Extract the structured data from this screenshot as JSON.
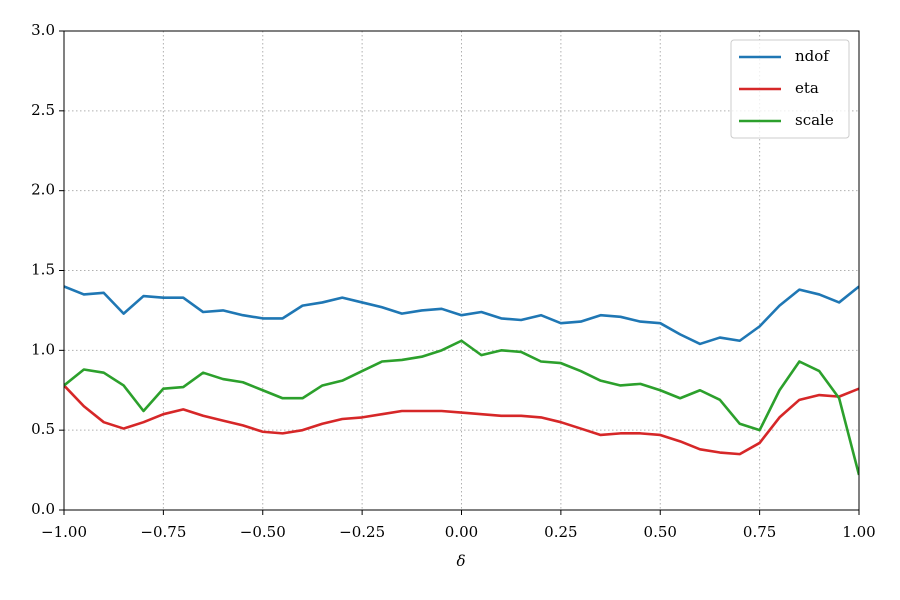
{
  "chart_data": {
    "type": "line",
    "x_label": "δ",
    "x": [
      -1.0,
      -0.95,
      -0.9,
      -0.85,
      -0.8,
      -0.75,
      -0.7,
      -0.65,
      -0.6,
      -0.55,
      -0.5,
      -0.45,
      -0.4,
      -0.35,
      -0.3,
      -0.25,
      -0.2,
      -0.15,
      -0.1,
      -0.05,
      0.0,
      0.05,
      0.1,
      0.15,
      0.2,
      0.25,
      0.3,
      0.35,
      0.4,
      0.45,
      0.5,
      0.55,
      0.6,
      0.65,
      0.7,
      0.75,
      0.8,
      0.85,
      0.9,
      0.95,
      1.0
    ],
    "series": [
      {
        "name": "ndof",
        "color": "#1f77b4",
        "values": [
          1.4,
          1.35,
          1.36,
          1.23,
          1.34,
          1.33,
          1.33,
          1.24,
          1.25,
          1.22,
          1.2,
          1.2,
          1.28,
          1.3,
          1.33,
          1.3,
          1.27,
          1.23,
          1.25,
          1.26,
          1.22,
          1.24,
          1.2,
          1.19,
          1.22,
          1.17,
          1.18,
          1.22,
          1.21,
          1.18,
          1.17,
          1.1,
          1.04,
          1.08,
          1.06,
          1.15,
          1.28,
          1.38,
          1.35,
          1.3,
          1.4
        ]
      },
      {
        "name": "eta",
        "color": "#d62728",
        "values": [
          0.78,
          0.65,
          0.55,
          0.51,
          0.55,
          0.6,
          0.63,
          0.59,
          0.56,
          0.53,
          0.49,
          0.48,
          0.5,
          0.54,
          0.57,
          0.58,
          0.6,
          0.62,
          0.62,
          0.62,
          0.61,
          0.6,
          0.59,
          0.59,
          0.58,
          0.55,
          0.51,
          0.47,
          0.48,
          0.48,
          0.47,
          0.43,
          0.38,
          0.36,
          0.35,
          0.42,
          0.58,
          0.69,
          0.72,
          0.71,
          0.76
        ]
      },
      {
        "name": "scale",
        "color": "#2ca02c",
        "values": [
          0.78,
          0.88,
          0.86,
          0.78,
          0.62,
          0.76,
          0.77,
          0.86,
          0.82,
          0.8,
          0.75,
          0.7,
          0.7,
          0.78,
          0.81,
          0.87,
          0.93,
          0.94,
          0.96,
          1.0,
          1.06,
          0.97,
          1.0,
          0.99,
          0.93,
          0.92,
          0.87,
          0.81,
          0.78,
          0.79,
          0.75,
          0.7,
          0.75,
          0.69,
          0.54,
          0.5,
          0.75,
          0.93,
          0.87,
          0.7,
          0.22
        ]
      }
    ],
    "xlim": [
      -1.0,
      1.0
    ],
    "ylim": [
      0.0,
      3.0
    ],
    "xticks": [
      {
        "value": -1.0,
        "label": "−1.00"
      },
      {
        "value": -0.75,
        "label": "−0.75"
      },
      {
        "value": -0.5,
        "label": "−0.50"
      },
      {
        "value": -0.25,
        "label": "−0.25"
      },
      {
        "value": 0.0,
        "label": "0.00"
      },
      {
        "value": 0.25,
        "label": "0.25"
      },
      {
        "value": 0.5,
        "label": "0.50"
      },
      {
        "value": 0.75,
        "label": "0.75"
      },
      {
        "value": 1.0,
        "label": "1.00"
      }
    ],
    "yticks": [
      {
        "value": 0.0,
        "label": "0.0"
      },
      {
        "value": 0.5,
        "label": "0.5"
      },
      {
        "value": 1.0,
        "label": "1.0"
      },
      {
        "value": 1.5,
        "label": "1.5"
      },
      {
        "value": 2.0,
        "label": "2.0"
      },
      {
        "value": 2.5,
        "label": "2.5"
      },
      {
        "value": 3.0,
        "label": "3.0"
      }
    ],
    "grid": true,
    "legend": "upper-right"
  }
}
